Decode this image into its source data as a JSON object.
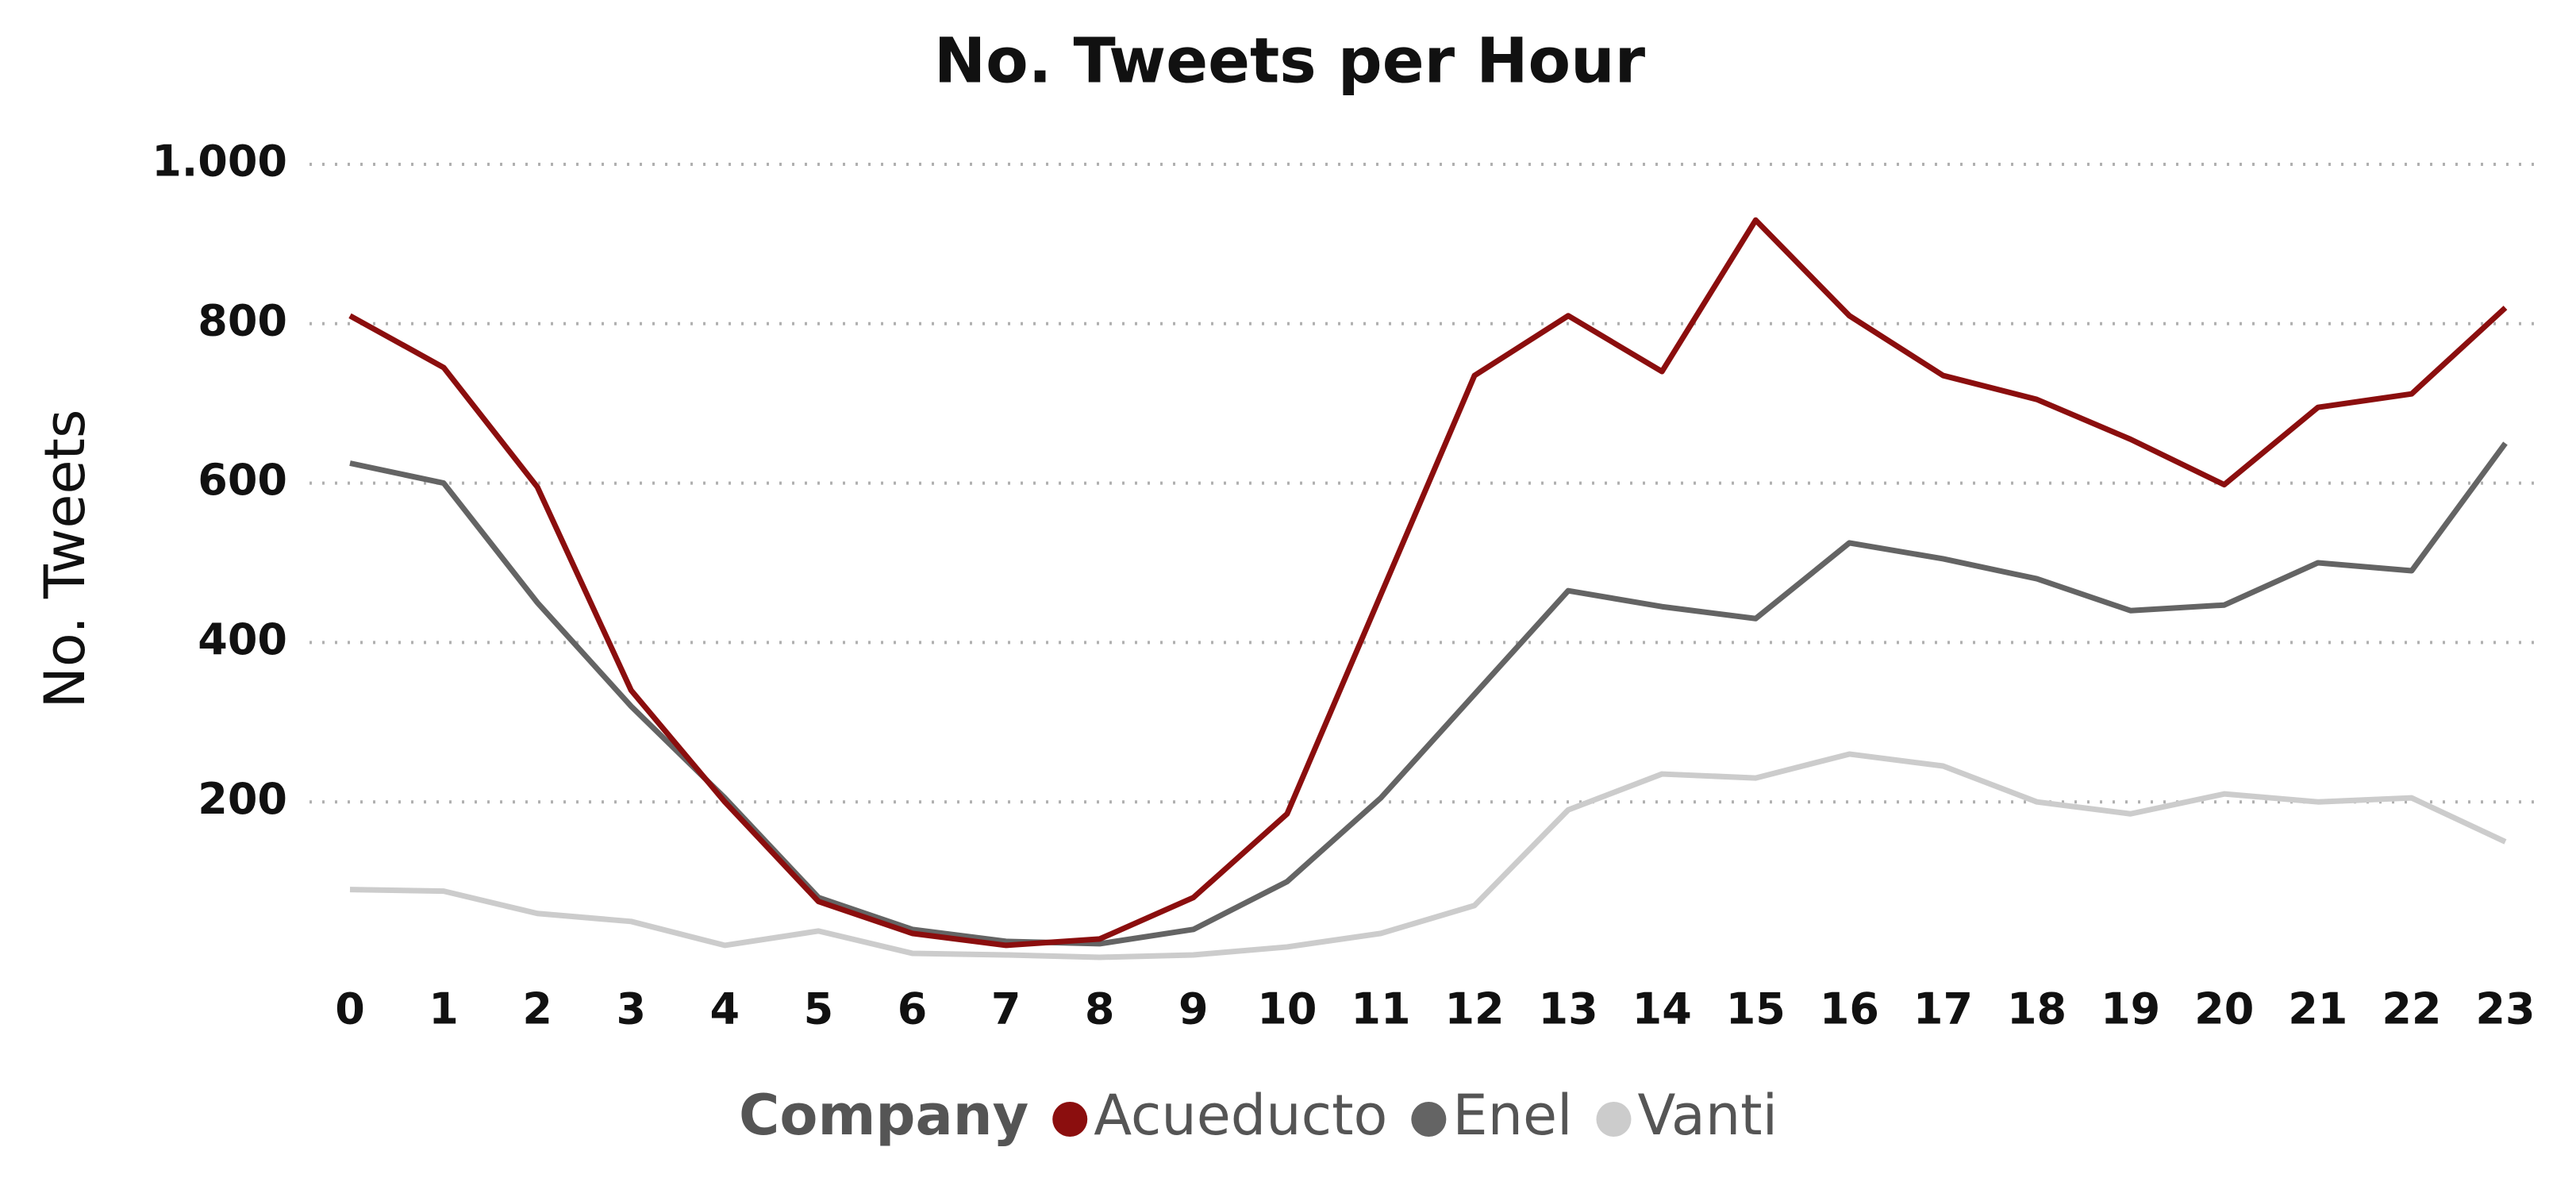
{
  "chart_data": {
    "type": "line",
    "title": "No. Tweets per Hour",
    "y_label": "No. Tweets",
    "legend_title": "Company",
    "x": [
      0,
      1,
      2,
      3,
      4,
      5,
      6,
      7,
      8,
      9,
      10,
      11,
      12,
      13,
      14,
      15,
      16,
      17,
      18,
      19,
      20,
      21,
      22,
      23
    ],
    "xlim": [
      0,
      23
    ],
    "xticks": [
      0,
      1,
      2,
      3,
      4,
      5,
      6,
      7,
      8,
      9,
      10,
      11,
      12,
      13,
      14,
      15,
      16,
      17,
      18,
      19,
      20,
      21,
      22,
      23
    ],
    "ylim": [
      0,
      1000
    ],
    "yticks": [
      200,
      400,
      600,
      800,
      {
        "value": 1000,
        "label": "1.000"
      }
    ],
    "grid": true,
    "series": [
      {
        "name": "Acueducto",
        "color": "#8b0e0e",
        "values": [
          810,
          745,
          595,
          340,
          200,
          75,
          35,
          20,
          28,
          80,
          185,
          460,
          735,
          810,
          740,
          930,
          810,
          735,
          705,
          655,
          598,
          695,
          712,
          820
        ]
      },
      {
        "name": "Enel",
        "color": "#646464",
        "values": [
          625,
          600,
          450,
          320,
          205,
          80,
          40,
          25,
          22,
          40,
          100,
          205,
          335,
          465,
          445,
          430,
          525,
          505,
          480,
          440,
          447,
          500,
          490,
          650
        ]
      },
      {
        "name": "Vanti",
        "color": "#cccccc",
        "values": [
          90,
          88,
          60,
          50,
          20,
          38,
          10,
          8,
          5,
          8,
          18,
          35,
          70,
          190,
          235,
          230,
          260,
          245,
          200,
          185,
          210,
          200,
          205,
          150
        ]
      }
    ]
  }
}
